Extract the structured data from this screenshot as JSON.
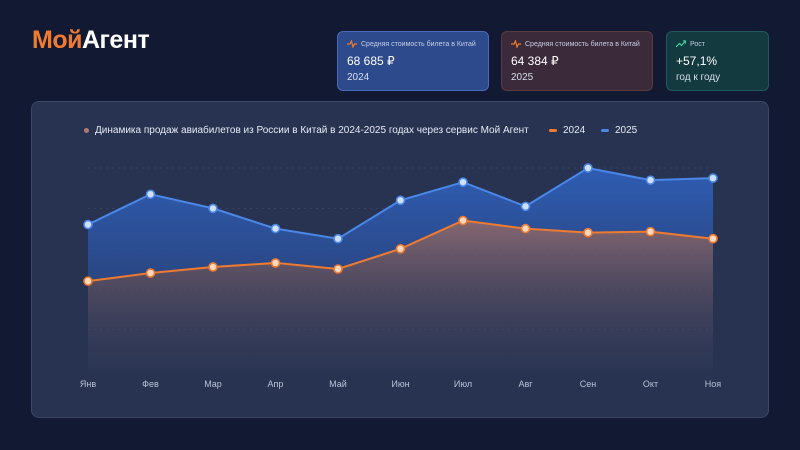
{
  "brand": {
    "part1": "Мой",
    "part2": "Агент"
  },
  "cards": [
    {
      "label": "Средняя стоимость билета в Китай",
      "value": "68 685 ₽",
      "sub": "2024",
      "icon": "pulse-icon",
      "color": "#6f9cf0"
    },
    {
      "label": "Средняя стоимость билета в Китай",
      "value": "64 384 ₽",
      "sub": "2025",
      "icon": "pulse-icon",
      "color": "#f07a2f"
    },
    {
      "label": "Рост",
      "value": "+57,1%",
      "sub": "год к году",
      "icon": "trend-up-icon",
      "color": "#3fd1a0"
    }
  ],
  "chart_data": {
    "type": "area",
    "title": "Динамика продаж авиабилетов из России в Китай в 2024-2025 годах через сервис Мой Агент",
    "categories": [
      "Янв",
      "Фев",
      "Мар",
      "Апр",
      "Май",
      "Июн",
      "Июл",
      "Авг",
      "Сен",
      "Окт",
      "Ноя"
    ],
    "series": [
      {
        "name": "2024",
        "color": "#f07a2f",
        "values": [
          44,
          48,
          51,
          53,
          50,
          60,
          74,
          70,
          68,
          68.5,
          65
        ]
      },
      {
        "name": "2025",
        "color": "#4a87e8",
        "values": [
          72,
          87,
          80,
          70,
          65,
          84,
          93,
          81,
          100,
          94,
          95
        ]
      }
    ],
    "ylim": [
      0,
      120
    ],
    "grid": true
  }
}
